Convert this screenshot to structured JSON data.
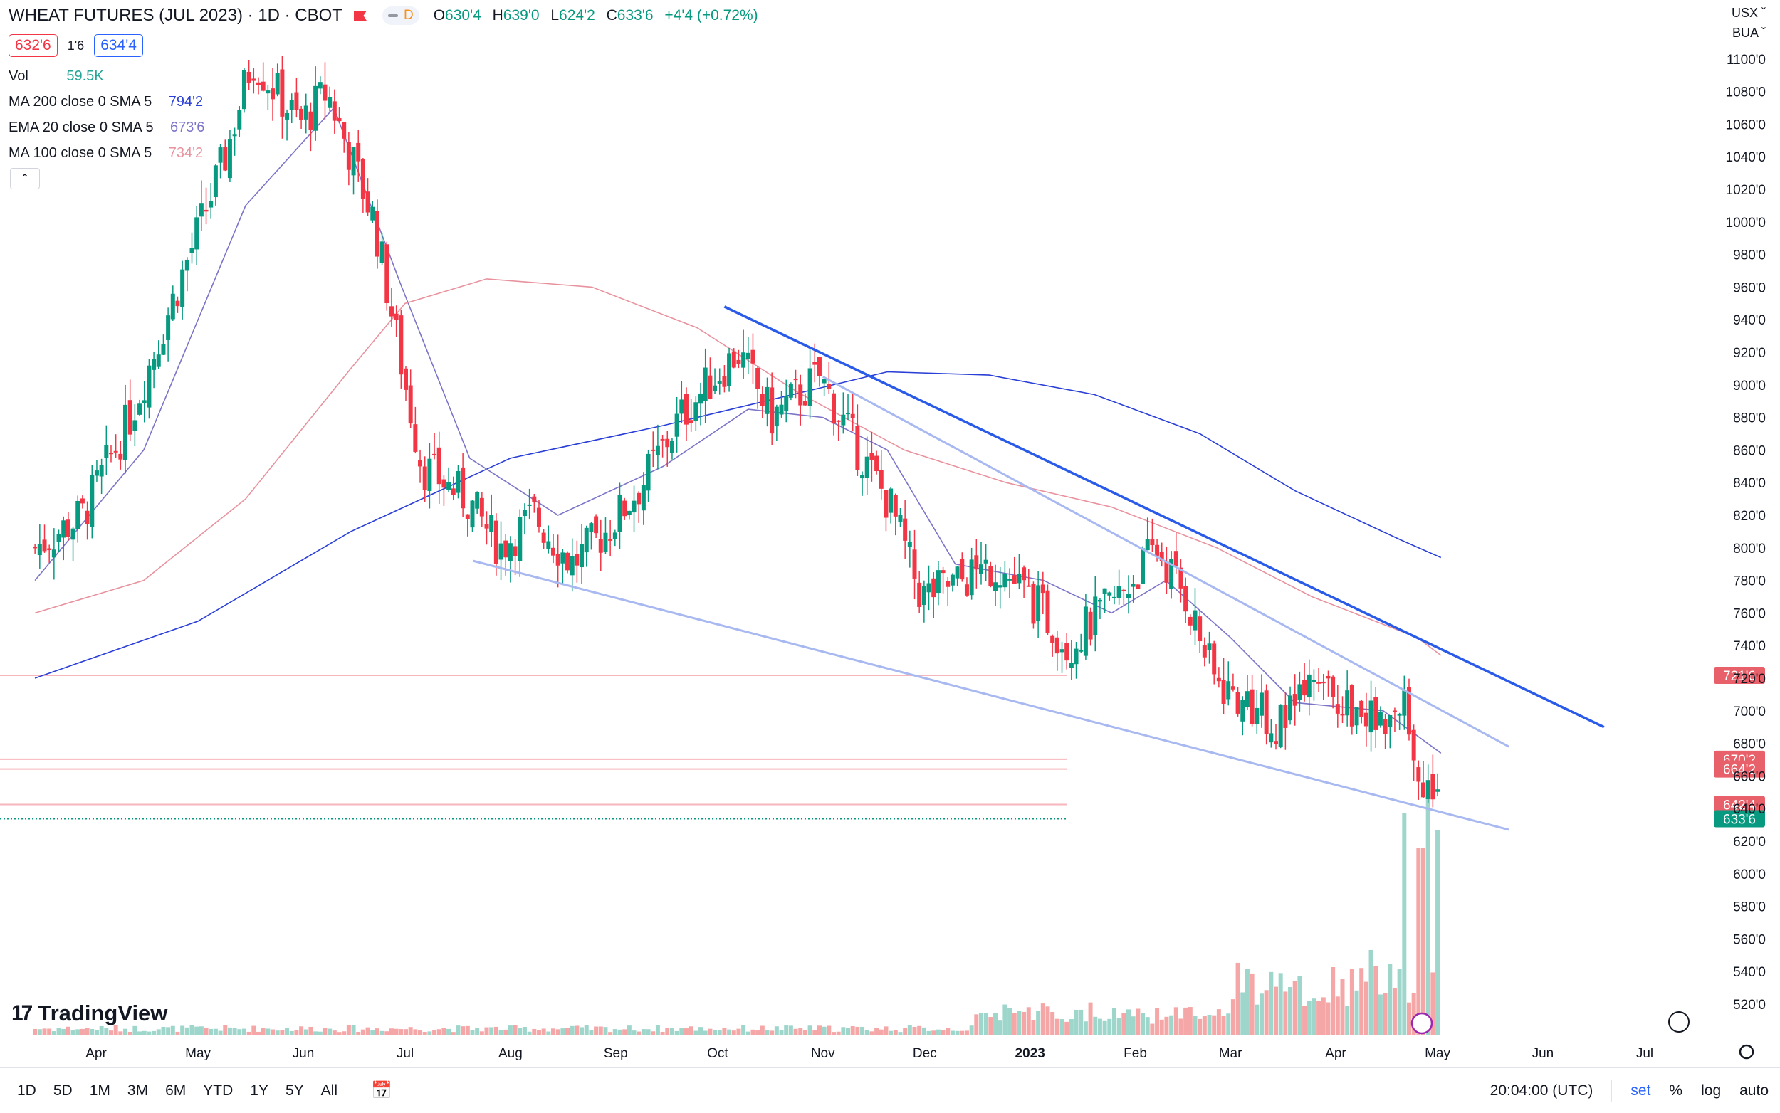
{
  "header": {
    "title": "WHEAT FUTURES (JUL 2023) · 1D · CBOT",
    "pill_label": "D",
    "ohlc": [
      {
        "k": "O",
        "v": "630'4"
      },
      {
        "k": "H",
        "v": "639'0"
      },
      {
        "k": "L",
        "v": "624'2"
      },
      {
        "k": "C",
        "v": "633'6"
      },
      {
        "k": "",
        "v": "+4'4 (+0.72%)"
      }
    ],
    "bid": "632'6",
    "spread": "1'6",
    "ask": "634'4"
  },
  "indicators": {
    "vol": {
      "name": "Vol",
      "value": "59.5K"
    },
    "ma200": {
      "name": "MA 200 close 0 SMA 5",
      "value": "794'2",
      "color": "#2a3fd6"
    },
    "ema20": {
      "name": "EMA 20 close 0 SMA 5",
      "value": "673'6",
      "color": "#7b74c9"
    },
    "ma100": {
      "name": "MA 100 close 0 SMA 5",
      "value": "734'2",
      "color": "#e8929e"
    }
  },
  "axis": {
    "currency": "USX",
    "unit": "BUA",
    "time_display": "20:04:00 (UTC)"
  },
  "toolbar": {
    "timeframes": [
      "1D",
      "5D",
      "1M",
      "3M",
      "6M",
      "YTD",
      "1Y",
      "5Y",
      "All"
    ],
    "set": "set",
    "percent": "%",
    "log": "log",
    "auto": "auto"
  },
  "branding": {
    "name": "TradingView"
  },
  "colors": {
    "up": "#089981",
    "down": "#f23645",
    "up_vol": "#9fd6cc",
    "down_vol": "#f5a6a6"
  },
  "chart_data": {
    "type": "candlestick",
    "y_unit": "cents per bushel",
    "ylim": [
      505,
      1115
    ],
    "y_ticks": [
      520,
      540,
      560,
      580,
      600,
      620,
      640,
      660,
      680,
      700,
      720,
      740,
      760,
      780,
      800,
      820,
      840,
      860,
      880,
      900,
      920,
      940,
      960,
      980,
      1000,
      1020,
      1040,
      1060,
      1080,
      1100
    ],
    "y_tick_labels": [
      "520'0",
      "540'0",
      "560'0",
      "580'0",
      "600'0",
      "620'0",
      "640'0",
      "660'0",
      "680'0",
      "700'0",
      "720'0",
      "740'0",
      "760'0",
      "780'0",
      "800'0",
      "820'0",
      "840'0",
      "860'0",
      "880'0",
      "900'0",
      "920'0",
      "940'0",
      "960'0",
      "980'0",
      "1000'0",
      "1020'0",
      "1040'0",
      "1060'0",
      "1080'0",
      "1100'0"
    ],
    "x_labels": [
      "Apr",
      "May",
      "Jun",
      "Jul",
      "Aug",
      "Sep",
      "Oct",
      "Nov",
      "Dec",
      "2023",
      "Feb",
      "Mar",
      "Apr",
      "May",
      "Jun",
      "Jul"
    ],
    "x_label_months": [
      "2022-04",
      "2022-05",
      "2022-06",
      "2022-07",
      "2022-08",
      "2022-09",
      "2022-10",
      "2022-11",
      "2022-12",
      "2023-01",
      "2023-02",
      "2023-03",
      "2023-04",
      "2023-05",
      "2023-06",
      "2023-07"
    ],
    "close_path": [
      [
        "2022-03-14",
        800
      ],
      [
        "2022-03-28",
        820
      ],
      [
        "2022-04-11",
        880
      ],
      [
        "2022-04-25",
        960
      ],
      [
        "2022-05-09",
        1040
      ],
      [
        "2022-05-17",
        1100
      ],
      [
        "2022-05-31",
        1060
      ],
      [
        "2022-06-08",
        1080
      ],
      [
        "2022-06-22",
        1000
      ],
      [
        "2022-07-01",
        900
      ],
      [
        "2022-07-06",
        850
      ],
      [
        "2022-07-19",
        830
      ],
      [
        "2022-07-29",
        800
      ],
      [
        "2022-08-08",
        820
      ],
      [
        "2022-08-19",
        790
      ],
      [
        "2022-08-29",
        810
      ],
      [
        "2022-09-09",
        840
      ],
      [
        "2022-09-20",
        880
      ],
      [
        "2022-09-30",
        905
      ],
      [
        "2022-10-07",
        920
      ],
      [
        "2022-10-17",
        880
      ],
      [
        "2022-10-31",
        905
      ],
      [
        "2022-11-10",
        865
      ],
      [
        "2022-11-21",
        825
      ],
      [
        "2022-11-30",
        770
      ],
      [
        "2022-12-12",
        780
      ],
      [
        "2022-12-22",
        790
      ],
      [
        "2023-01-05",
        760
      ],
      [
        "2023-01-12",
        740
      ],
      [
        "2023-01-27",
        770
      ],
      [
        "2023-02-07",
        800
      ],
      [
        "2023-02-16",
        770
      ],
      [
        "2023-02-24",
        720
      ],
      [
        "2023-03-08",
        700
      ],
      [
        "2023-03-16",
        690
      ],
      [
        "2023-03-24",
        712
      ],
      [
        "2023-04-04",
        705
      ],
      [
        "2023-04-14",
        690
      ],
      [
        "2023-04-21",
        705
      ],
      [
        "2023-04-26",
        660
      ],
      [
        "2023-05-01",
        640
      ],
      [
        "2023-05-02",
        633.75
      ]
    ],
    "volume_spikes": [
      [
        "2023-03-20",
        0.16
      ],
      [
        "2023-03-31",
        0.2
      ],
      [
        "2023-04-11",
        0.25
      ],
      [
        "2023-04-21",
        0.65
      ],
      [
        "2023-04-26",
        0.55
      ],
      [
        "2023-04-28",
        0.7
      ],
      [
        "2023-05-01",
        0.6
      ],
      [
        "2023-05-02",
        0.4
      ]
    ],
    "series": [
      {
        "name": "MA 200 close 0 SMA 5",
        "last": "794'2",
        "path": [
          [
            "2022-03-14",
            720
          ],
          [
            "2022-05-01",
            755
          ],
          [
            "2022-06-15",
            810
          ],
          [
            "2022-08-01",
            855
          ],
          [
            "2022-09-15",
            875
          ],
          [
            "2022-10-15",
            890
          ],
          [
            "2022-11-20",
            908
          ],
          [
            "2022-12-20",
            906
          ],
          [
            "2023-01-20",
            894
          ],
          [
            "2023-02-20",
            870
          ],
          [
            "2023-03-20",
            835
          ],
          [
            "2023-04-20",
            805
          ],
          [
            "2023-05-02",
            794
          ]
        ]
      },
      {
        "name": "EMA 20 close 0 SMA 5",
        "last": "673'6",
        "path": [
          [
            "2022-03-14",
            780
          ],
          [
            "2022-04-15",
            860
          ],
          [
            "2022-05-15",
            1010
          ],
          [
            "2022-06-10",
            1070
          ],
          [
            "2022-06-30",
            960
          ],
          [
            "2022-07-20",
            855
          ],
          [
            "2022-08-15",
            820
          ],
          [
            "2022-09-15",
            850
          ],
          [
            "2022-10-10",
            885
          ],
          [
            "2022-11-01",
            880
          ],
          [
            "2022-11-20",
            860
          ],
          [
            "2022-12-10",
            790
          ],
          [
            "2023-01-05",
            780
          ],
          [
            "2023-01-25",
            760
          ],
          [
            "2023-02-10",
            780
          ],
          [
            "2023-03-01",
            745
          ],
          [
            "2023-03-20",
            705
          ],
          [
            "2023-04-15",
            700
          ],
          [
            "2023-05-02",
            674
          ]
        ]
      },
      {
        "name": "MA 100 close 0 SMA 5",
        "last": "734'2",
        "path": [
          [
            "2022-03-14",
            760
          ],
          [
            "2022-04-15",
            780
          ],
          [
            "2022-05-15",
            830
          ],
          [
            "2022-06-15",
            910
          ],
          [
            "2022-07-01",
            950
          ],
          [
            "2022-07-25",
            965
          ],
          [
            "2022-08-25",
            960
          ],
          [
            "2022-09-25",
            935
          ],
          [
            "2022-10-25",
            895
          ],
          [
            "2022-11-25",
            860
          ],
          [
            "2022-12-25",
            840
          ],
          [
            "2023-01-25",
            825
          ],
          [
            "2023-02-25",
            800
          ],
          [
            "2023-03-25",
            770
          ],
          [
            "2023-04-25",
            745
          ],
          [
            "2023-05-02",
            734
          ]
        ]
      }
    ],
    "trend_lines": [
      {
        "from": [
          "2022-10-03",
          948
        ],
        "to": [
          "2023-06-19",
          690
        ],
        "color": "#2a5be8"
      },
      {
        "from": [
          "2022-11-01",
          905
        ],
        "to": [
          "2023-05-22",
          678
        ],
        "color": "#a8b8f0"
      },
      {
        "from": [
          "2022-07-21",
          792
        ],
        "to": [
          "2023-05-22",
          627
        ],
        "color": "#a8b8f0"
      }
    ],
    "horizontal_levels": [
      {
        "label": "721'6",
        "value": 721.75,
        "color": "#f7b6bb",
        "tag": "#e86069"
      },
      {
        "label": "670'2",
        "value": 670.25,
        "color": "#f7b6bb",
        "tag": "#e86069"
      },
      {
        "label": "664'2",
        "value": 664.25,
        "color": "#f7b6bb",
        "tag": "#e86069"
      },
      {
        "label": "642'4",
        "value": 642.5,
        "color": "#f7b6bb",
        "tag": "#e86069"
      },
      {
        "label": "633'6",
        "value": 633.75,
        "color": "#089981",
        "tag": "#089981",
        "dotted": true
      }
    ]
  }
}
